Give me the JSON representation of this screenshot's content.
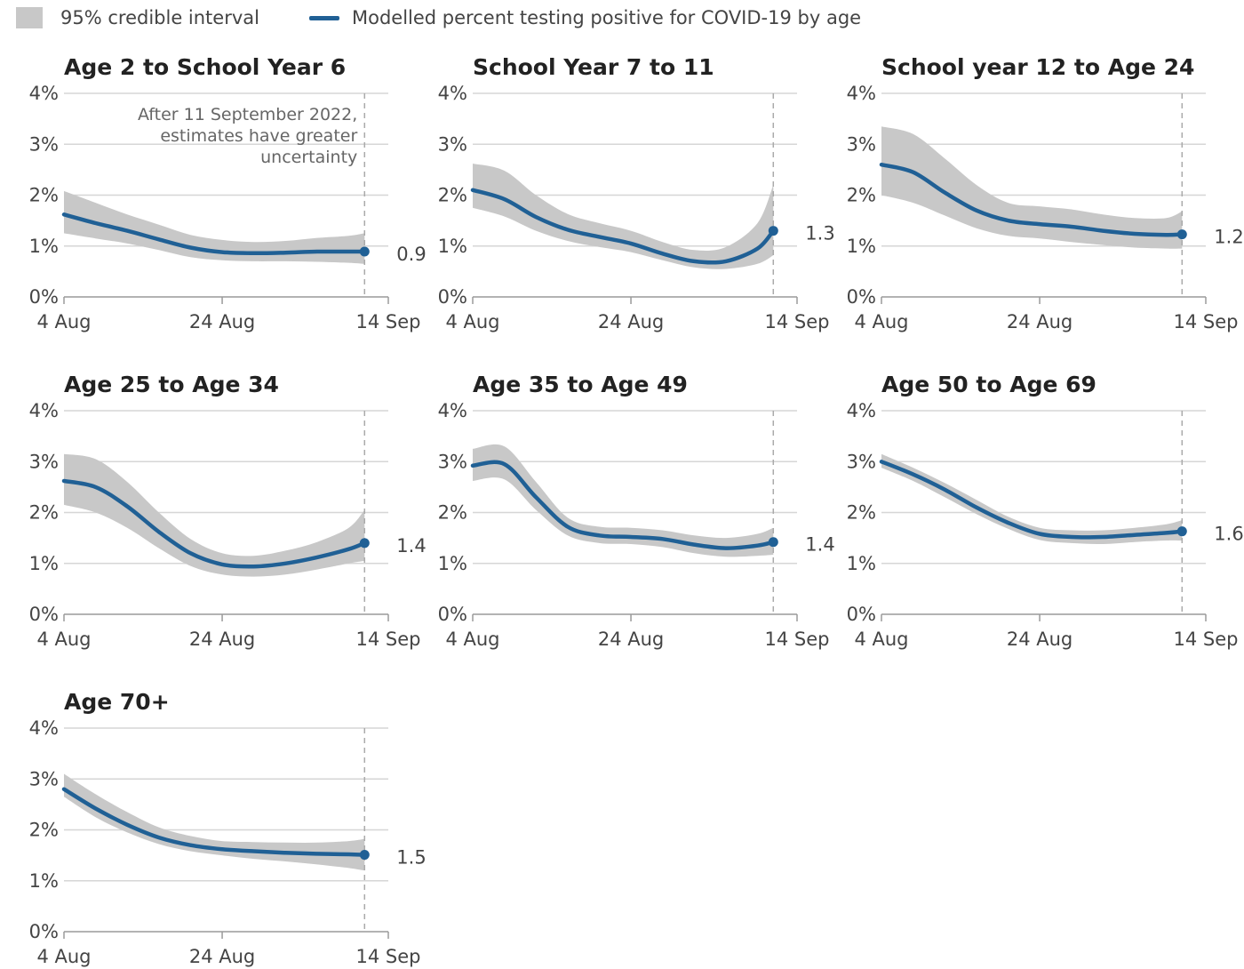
{
  "legend": {
    "interval_label": "95% credible interval",
    "line_label": "Modelled percent testing positive for COVID-19 by age"
  },
  "colors": {
    "line": "#206095",
    "band": "#c8c8c8",
    "grid": "#d6d6d6",
    "axis": "#9a9a9a"
  },
  "annotation": [
    "After 11 September 2022,",
    "estimates have greater",
    "uncertainty"
  ],
  "chart_data": [
    {
      "type": "line",
      "title": "Age 2 to School Year 6",
      "x": [
        "4 Aug",
        "8 Aug",
        "12 Aug",
        "16 Aug",
        "20 Aug",
        "24 Aug",
        "28 Aug",
        "1 Sep",
        "5 Sep",
        "9 Sep",
        "11 Sep"
      ],
      "xticks": [
        "4 Aug",
        "24 Aug",
        "14 Sep"
      ],
      "yticks": [
        "0%",
        "1%",
        "2%",
        "3%",
        "4%"
      ],
      "ylim": [
        0,
        4
      ],
      "series": [
        {
          "values": [
            1.62,
            1.45,
            1.3,
            1.13,
            0.97,
            0.88,
            0.86,
            0.87,
            0.89,
            0.89,
            0.89
          ]
        }
      ],
      "lower": [
        1.25,
        1.15,
        1.05,
        0.92,
        0.78,
        0.72,
        0.7,
        0.7,
        0.69,
        0.67,
        0.65
      ],
      "upper": [
        2.08,
        1.85,
        1.62,
        1.42,
        1.22,
        1.12,
        1.08,
        1.1,
        1.16,
        1.2,
        1.25
      ],
      "final_label": "0.9"
    },
    {
      "type": "line",
      "title": "School Year 7 to 11",
      "x": [
        "4 Aug",
        "8 Aug",
        "12 Aug",
        "16 Aug",
        "20 Aug",
        "24 Aug",
        "28 Aug",
        "1 Sep",
        "5 Sep",
        "9 Sep",
        "11 Sep"
      ],
      "xticks": [
        "4 Aug",
        "24 Aug",
        "14 Sep"
      ],
      "yticks": [
        "0%",
        "1%",
        "2%",
        "3%",
        "4%"
      ],
      "ylim": [
        0,
        4
      ],
      "series": [
        {
          "values": [
            2.1,
            1.92,
            1.57,
            1.32,
            1.18,
            1.05,
            0.85,
            0.7,
            0.7,
            0.95,
            1.3
          ]
        }
      ],
      "lower": [
        1.75,
        1.58,
        1.3,
        1.1,
        0.98,
        0.88,
        0.72,
        0.58,
        0.55,
        0.65,
        0.82
      ],
      "upper": [
        2.62,
        2.48,
        2.0,
        1.63,
        1.45,
        1.3,
        1.08,
        0.92,
        0.98,
        1.45,
        2.2
      ],
      "final_label": "1.3"
    },
    {
      "type": "line",
      "title": "School year 12 to Age 24",
      "x": [
        "4 Aug",
        "8 Aug",
        "12 Aug",
        "16 Aug",
        "20 Aug",
        "24 Aug",
        "28 Aug",
        "1 Sep",
        "5 Sep",
        "9 Sep",
        "11 Sep"
      ],
      "xticks": [
        "4 Aug",
        "24 Aug",
        "14 Sep"
      ],
      "yticks": [
        "0%",
        "1%",
        "2%",
        "3%",
        "4%"
      ],
      "ylim": [
        0,
        4
      ],
      "series": [
        {
          "values": [
            2.6,
            2.45,
            2.05,
            1.7,
            1.5,
            1.43,
            1.38,
            1.3,
            1.24,
            1.22,
            1.23
          ]
        }
      ],
      "lower": [
        2.0,
        1.85,
        1.6,
        1.35,
        1.2,
        1.15,
        1.08,
        1.02,
        0.97,
        0.95,
        0.95
      ],
      "upper": [
        3.35,
        3.2,
        2.72,
        2.2,
        1.85,
        1.78,
        1.72,
        1.62,
        1.55,
        1.55,
        1.68
      ],
      "final_label": "1.2"
    },
    {
      "type": "line",
      "title": "Age 25 to Age 34",
      "x": [
        "4 Aug",
        "8 Aug",
        "12 Aug",
        "16 Aug",
        "20 Aug",
        "24 Aug",
        "28 Aug",
        "1 Sep",
        "5 Sep",
        "9 Sep",
        "11 Sep"
      ],
      "xticks": [
        "4 Aug",
        "24 Aug",
        "14 Sep"
      ],
      "yticks": [
        "0%",
        "1%",
        "2%",
        "3%",
        "4%"
      ],
      "ylim": [
        0,
        4
      ],
      "series": [
        {
          "values": [
            2.62,
            2.5,
            2.12,
            1.62,
            1.2,
            0.98,
            0.94,
            1.0,
            1.12,
            1.28,
            1.4
          ]
        }
      ],
      "lower": [
        2.15,
        2.0,
        1.7,
        1.3,
        0.95,
        0.78,
        0.74,
        0.78,
        0.88,
        1.0,
        1.05
      ],
      "upper": [
        3.15,
        3.05,
        2.6,
        2.0,
        1.48,
        1.2,
        1.15,
        1.25,
        1.42,
        1.7,
        2.05
      ],
      "final_label": "1.4"
    },
    {
      "type": "line",
      "title": "Age 35 to Age 49",
      "x": [
        "4 Aug",
        "8 Aug",
        "12 Aug",
        "16 Aug",
        "20 Aug",
        "24 Aug",
        "28 Aug",
        "1 Sep",
        "5 Sep",
        "9 Sep",
        "11 Sep"
      ],
      "xticks": [
        "4 Aug",
        "24 Aug",
        "14 Sep"
      ],
      "yticks": [
        "0%",
        "1%",
        "2%",
        "3%",
        "4%"
      ],
      "ylim": [
        0,
        4
      ],
      "series": [
        {
          "values": [
            2.92,
            2.95,
            2.3,
            1.72,
            1.55,
            1.52,
            1.48,
            1.37,
            1.3,
            1.35,
            1.42
          ]
        }
      ],
      "lower": [
        2.62,
        2.65,
        2.05,
        1.55,
        1.4,
        1.38,
        1.32,
        1.2,
        1.13,
        1.15,
        1.17
      ],
      "upper": [
        3.25,
        3.3,
        2.6,
        1.9,
        1.72,
        1.7,
        1.65,
        1.55,
        1.5,
        1.58,
        1.7
      ],
      "final_label": "1.4"
    },
    {
      "type": "line",
      "title": "Age 50 to Age 69",
      "x": [
        "4 Aug",
        "8 Aug",
        "12 Aug",
        "16 Aug",
        "20 Aug",
        "24 Aug",
        "28 Aug",
        "1 Sep",
        "5 Sep",
        "9 Sep",
        "11 Sep"
      ],
      "xticks": [
        "4 Aug",
        "24 Aug",
        "14 Sep"
      ],
      "yticks": [
        "0%",
        "1%",
        "2%",
        "3%",
        "4%"
      ],
      "ylim": [
        0,
        4
      ],
      "series": [
        {
          "values": [
            3.0,
            2.75,
            2.45,
            2.1,
            1.8,
            1.58,
            1.52,
            1.52,
            1.56,
            1.6,
            1.63
          ]
        }
      ],
      "lower": [
        2.88,
        2.62,
        2.3,
        1.97,
        1.68,
        1.46,
        1.4,
        1.38,
        1.42,
        1.45,
        1.45
      ],
      "upper": [
        3.15,
        2.88,
        2.58,
        2.25,
        1.92,
        1.7,
        1.65,
        1.65,
        1.7,
        1.77,
        1.85
      ],
      "final_label": "1.6"
    },
    {
      "type": "line",
      "title": "Age 70+",
      "x": [
        "4 Aug",
        "8 Aug",
        "12 Aug",
        "16 Aug",
        "20 Aug",
        "24 Aug",
        "28 Aug",
        "1 Sep",
        "5 Sep",
        "9 Sep",
        "11 Sep"
      ],
      "xticks": [
        "4 Aug",
        "24 Aug",
        "14 Sep"
      ],
      "yticks": [
        "0%",
        "1%",
        "2%",
        "3%",
        "4%"
      ],
      "ylim": [
        0,
        4
      ],
      "series": [
        {
          "values": [
            2.8,
            2.42,
            2.1,
            1.85,
            1.7,
            1.62,
            1.58,
            1.55,
            1.53,
            1.52,
            1.51
          ]
        }
      ],
      "lower": [
        2.65,
        2.25,
        1.95,
        1.72,
        1.58,
        1.5,
        1.43,
        1.38,
        1.32,
        1.25,
        1.2
      ],
      "upper": [
        3.1,
        2.7,
        2.35,
        2.05,
        1.88,
        1.78,
        1.76,
        1.75,
        1.75,
        1.78,
        1.82
      ],
      "final_label": "1.5"
    }
  ]
}
